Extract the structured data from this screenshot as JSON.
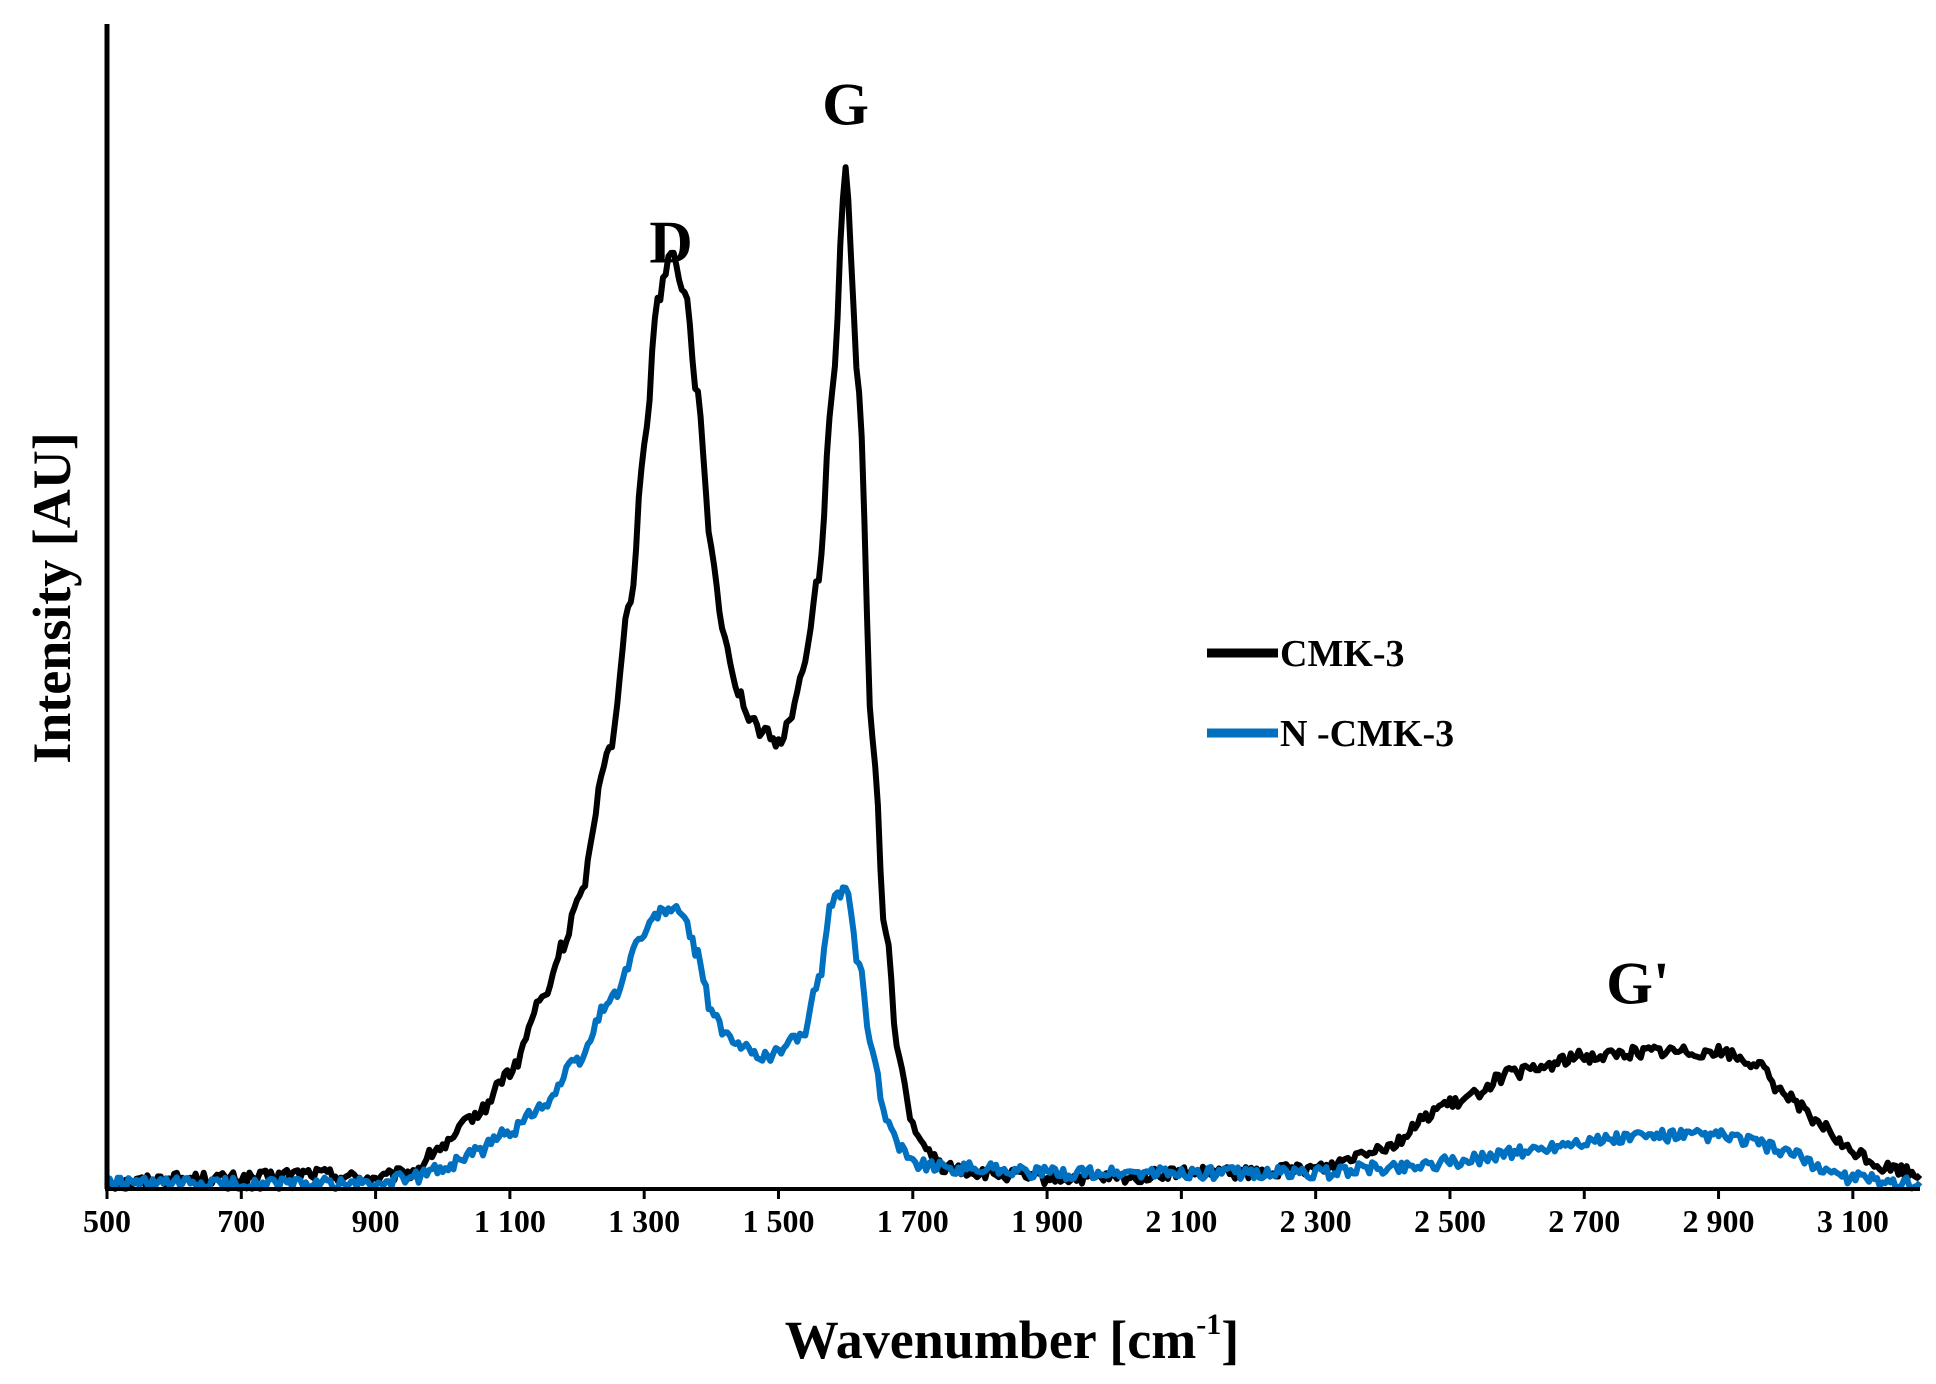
{
  "chart_data": {
    "type": "line",
    "title": "",
    "xlabel_main": "Wavenumber [cm",
    "xlabel_sup": "-1",
    "xlabel_close": "]",
    "ylabel": "Intensity [AU]",
    "xlim": [
      500,
      3200
    ],
    "ylim": [
      0,
      1.1
    ],
    "x_tick_values": [
      500,
      700,
      900,
      1100,
      1300,
      1500,
      1700,
      1900,
      2100,
      2300,
      2500,
      2700,
      2900,
      3100
    ],
    "x_tick_labels": [
      "500",
      "700",
      "900",
      "1 100",
      "1 300",
      "1 500",
      "1 700",
      "1 900",
      "2 100",
      "2 300",
      "2 500",
      "2 700",
      "2 900",
      "3 100"
    ],
    "y_tick_labels_shown": false,
    "grid": false,
    "legend_position": "right-middle",
    "peak_annotations": [
      {
        "label": "D",
        "x": 1340,
        "y": 0.875
      },
      {
        "label": "G",
        "x": 1600,
        "y": 1.005
      },
      {
        "label": "G'",
        "x": 2780,
        "y": 0.175
      }
    ],
    "series": [
      {
        "name": "CMK-3",
        "color": "#000000",
        "x": [
          500,
          600,
          700,
          800,
          900,
          950,
          1000,
          1050,
          1100,
          1150,
          1180,
          1200,
          1250,
          1280,
          1300,
          1320,
          1340,
          1360,
          1380,
          1400,
          1420,
          1440,
          1460,
          1480,
          1500,
          1520,
          1540,
          1560,
          1580,
          1600,
          1620,
          1640,
          1660,
          1680,
          1700,
          1720,
          1750,
          1800,
          1900,
          2000,
          2100,
          2200,
          2300,
          2400,
          2500,
          2600,
          2700,
          2800,
          2900,
          2950,
          3000,
          3050,
          3100,
          3150,
          3200
        ],
        "y": [
          0.005,
          0.01,
          0.01,
          0.015,
          0.01,
          0.015,
          0.04,
          0.07,
          0.11,
          0.18,
          0.23,
          0.27,
          0.42,
          0.56,
          0.7,
          0.84,
          0.885,
          0.85,
          0.75,
          0.6,
          0.52,
          0.47,
          0.44,
          0.43,
          0.42,
          0.45,
          0.5,
          0.58,
          0.75,
          0.96,
          0.75,
          0.42,
          0.24,
          0.12,
          0.06,
          0.035,
          0.02,
          0.015,
          0.01,
          0.01,
          0.015,
          0.015,
          0.02,
          0.04,
          0.08,
          0.11,
          0.125,
          0.13,
          0.13,
          0.12,
          0.09,
          0.06,
          0.035,
          0.02,
          0.015
        ]
      },
      {
        "name": "N -CMK-3",
        "color": "#0070c0",
        "x": [
          500,
          600,
          700,
          800,
          900,
          950,
          1000,
          1050,
          1100,
          1150,
          1200,
          1250,
          1300,
          1320,
          1340,
          1360,
          1380,
          1400,
          1420,
          1440,
          1460,
          1480,
          1500,
          1520,
          1540,
          1560,
          1580,
          1600,
          1620,
          1640,
          1660,
          1680,
          1700,
          1750,
          1800,
          1900,
          2000,
          2100,
          2200,
          2300,
          2400,
          2500,
          2600,
          2700,
          2800,
          2900,
          2950,
          3000,
          3050,
          3100,
          3200
        ],
        "y": [
          0.005,
          0.005,
          0.005,
          0.005,
          0.005,
          0.01,
          0.02,
          0.035,
          0.055,
          0.08,
          0.12,
          0.18,
          0.24,
          0.26,
          0.265,
          0.255,
          0.22,
          0.17,
          0.145,
          0.135,
          0.13,
          0.125,
          0.13,
          0.14,
          0.15,
          0.2,
          0.27,
          0.285,
          0.21,
          0.13,
          0.07,
          0.04,
          0.025,
          0.02,
          0.02,
          0.015,
          0.015,
          0.015,
          0.015,
          0.015,
          0.02,
          0.025,
          0.035,
          0.045,
          0.05,
          0.05,
          0.045,
          0.035,
          0.02,
          0.01,
          0.005
        ]
      }
    ]
  }
}
